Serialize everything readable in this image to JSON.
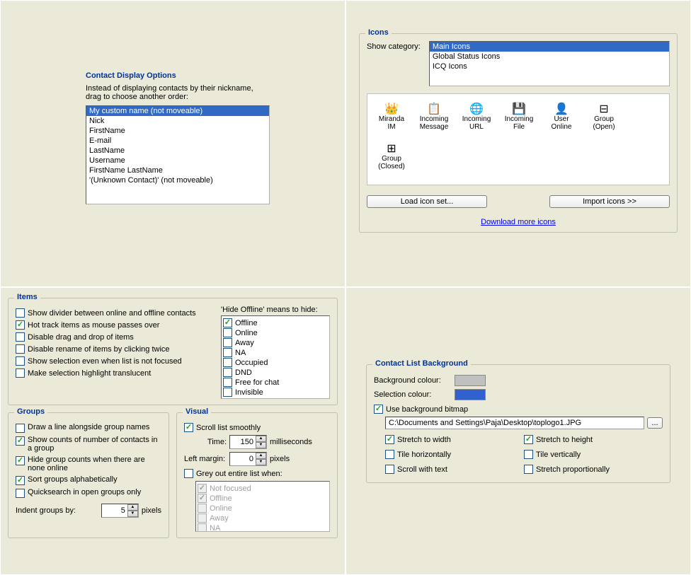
{
  "contactDisplay": {
    "title": "Contact Display Options",
    "desc1": "Instead of displaying contacts by their nickname,",
    "desc2": "drag to choose another order:",
    "items": [
      "My custom name (not moveable)",
      "Nick",
      "FirstName",
      "E-mail",
      "LastName",
      "Username",
      "FirstName LastName",
      "'(Unknown Contact)' (not moveable)"
    ],
    "selectedIndex": 0,
    "selection_bg": "#316ac5"
  },
  "icons": {
    "title": "Icons",
    "showCategoryLabel": "Show category:",
    "categories": [
      "Main Icons",
      "Global Status Icons",
      "ICQ Icons"
    ],
    "selectedCategoryIndex": 0,
    "grid": [
      {
        "name": "miranda-im-icon",
        "glyph": "👑",
        "label1": "Miranda",
        "label2": "IM"
      },
      {
        "name": "incoming-message-icon",
        "glyph": "📋",
        "label1": "Incoming",
        "label2": "Message"
      },
      {
        "name": "incoming-url-icon",
        "glyph": "🌐",
        "label1": "Incoming",
        "label2": "URL"
      },
      {
        "name": "incoming-file-icon",
        "glyph": "💾",
        "label1": "Incoming",
        "label2": "File"
      },
      {
        "name": "user-online-icon",
        "glyph": "👤",
        "label1": "User",
        "label2": "Online"
      },
      {
        "name": "group-open-icon",
        "glyph": "⊟",
        "label1": "Group",
        "label2": "(Open)"
      },
      {
        "name": "group-closed-icon",
        "glyph": "⊞",
        "label1": "Group",
        "label2": "(Closed)"
      }
    ],
    "loadBtn": "Load icon set...",
    "importBtn": "Import icons >>",
    "downloadLink": "Download more icons"
  },
  "items": {
    "title": "Items",
    "checks": [
      {
        "label": "Show divider between online and offline contacts",
        "checked": false
      },
      {
        "label": "Hot track items as mouse passes over",
        "checked": true
      },
      {
        "label": "Disable drag and drop of items",
        "checked": false
      },
      {
        "label": "Disable rename of items by clicking twice",
        "checked": false
      },
      {
        "label": "Show selection even when list is not focused",
        "checked": false
      },
      {
        "label": "Make selection highlight translucent",
        "checked": false
      }
    ],
    "hideLabel": "'Hide Offline' means to hide:",
    "hideStates": [
      {
        "label": "Offline",
        "checked": true
      },
      {
        "label": "Online",
        "checked": false
      },
      {
        "label": "Away",
        "checked": false
      },
      {
        "label": "NA",
        "checked": false
      },
      {
        "label": "Occupied",
        "checked": false
      },
      {
        "label": "DND",
        "checked": false
      },
      {
        "label": "Free for chat",
        "checked": false
      },
      {
        "label": "Invisible",
        "checked": false
      }
    ]
  },
  "groups": {
    "title": "Groups",
    "checks": [
      {
        "label": "Draw a line alongside group names",
        "checked": false
      },
      {
        "label": "Show counts of number of contacts in a group",
        "checked": true
      },
      {
        "label": "Hide group counts when there are none online",
        "checked": true
      },
      {
        "label": "Sort groups alphabetically",
        "checked": true
      },
      {
        "label": "Quicksearch in open groups only",
        "checked": false
      }
    ],
    "indentLabel": "Indent groups by:",
    "indentValue": "5",
    "pixels": "pixels"
  },
  "visual": {
    "title": "Visual",
    "scrollSmooth": "Scroll list smoothly",
    "scrollSmoothChecked": true,
    "timeLabel": "Time:",
    "timeValue": "150",
    "ms": "milliseconds",
    "leftMarginLabel": "Left margin:",
    "leftMarginValue": "0",
    "pixels": "pixels",
    "greyLabel": "Grey out entire list when:",
    "greyChecked": false,
    "greyStates": [
      {
        "label": "Not focused",
        "checked": true,
        "disabled": true
      },
      {
        "label": "Offline",
        "checked": true,
        "disabled": true
      },
      {
        "label": "Online",
        "checked": false,
        "disabled": true
      },
      {
        "label": "Away",
        "checked": false,
        "disabled": true
      },
      {
        "label": "NA",
        "checked": false,
        "disabled": true
      }
    ]
  },
  "clBg": {
    "title": "Contact List Background",
    "bgLabel": "Background colour:",
    "bgColor": "#c0c0c0",
    "selLabel": "Selection colour:",
    "selColor": "#3161ce",
    "useBitmapLabel": "Use background bitmap",
    "useBitmapChecked": true,
    "path": "C:\\Documents and Settings\\Paja\\Desktop\\toplogo1.JPG",
    "browseBtn": "...",
    "opts": [
      {
        "label": "Stretch to width",
        "checked": true
      },
      {
        "label": "Stretch to height",
        "checked": true
      },
      {
        "label": "Tile horizontally",
        "checked": false
      },
      {
        "label": "Tile vertically",
        "checked": false
      },
      {
        "label": "Scroll with text",
        "checked": false
      },
      {
        "label": "Stretch proportionally",
        "checked": false
      }
    ]
  }
}
